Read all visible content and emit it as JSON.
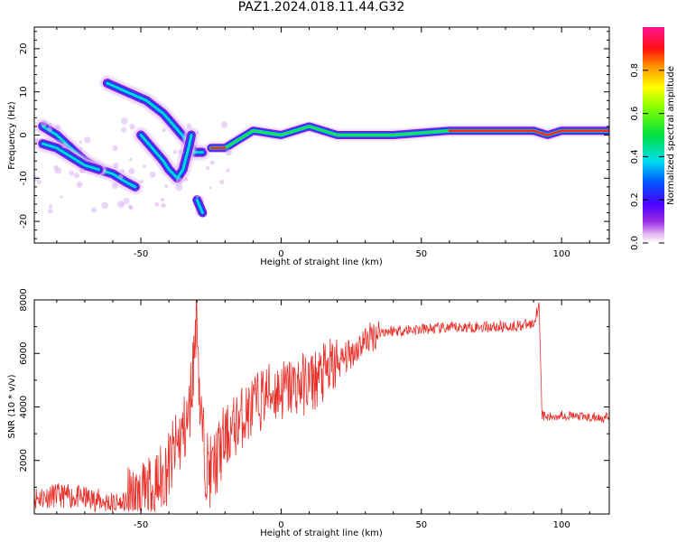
{
  "figure": {
    "title": "PAZ1.2024.018.11.44.G32"
  },
  "chart_data": [
    {
      "type": "heatmap",
      "title": "PAZ1.2024.018.11.44.G32",
      "xlabel": "Height of straight line (km)",
      "ylabel": "Frequency (Hz)",
      "xlim": [
        -88,
        117
      ],
      "ylim": [
        -25,
        25
      ],
      "xticks": [
        -50,
        0,
        50,
        100
      ],
      "yticks": [
        -20,
        -10,
        0,
        10,
        20
      ],
      "colorbar": {
        "label": "Normalized spectral amplitude",
        "ticks": [
          0.0,
          0.2,
          0.4,
          0.6,
          0.8
        ],
        "range": [
          0,
          1
        ],
        "colormap": "rainbow (magenta-purple-blue-cyan-green-yellow-red-pink)"
      },
      "traces": [
        {
          "description": "main branch",
          "points": [
            [
              -85,
              2
            ],
            [
              -80,
              0
            ],
            [
              -75,
              -3
            ],
            [
              -70,
              -6
            ],
            [
              -65,
              -8
            ],
            [
              -60,
              -9
            ],
            [
              -55,
              -11
            ],
            [
              -52,
              -12
            ]
          ]
        },
        {
          "description": "main branch lower edge",
          "points": [
            [
              -85,
              -2
            ],
            [
              -80,
              -3
            ],
            [
              -75,
              -5
            ],
            [
              -70,
              -7
            ],
            [
              -65,
              -8
            ]
          ]
        },
        {
          "description": "upper descending branch",
          "points": [
            [
              -62,
              12
            ],
            [
              -55,
              10
            ],
            [
              -48,
              8
            ],
            [
              -42,
              5
            ],
            [
              -38,
              2
            ],
            [
              -34,
              -1
            ],
            [
              -31,
              -4
            ],
            [
              -28,
              -4
            ]
          ]
        },
        {
          "description": "middle branch",
          "points": [
            [
              -50,
              0
            ],
            [
              -46,
              -3
            ],
            [
              -42,
              -6
            ],
            [
              -40,
              -8
            ],
            [
              -37,
              -10
            ],
            [
              -35,
              -8
            ],
            [
              -33,
              -3
            ],
            [
              -32,
              0
            ]
          ]
        },
        {
          "description": "isolated blob",
          "points": [
            [
              -30,
              -15
            ],
            [
              -28,
              -18
            ]
          ]
        },
        {
          "description": "flat dominant frequency",
          "points": [
            [
              -25,
              -3
            ],
            [
              -20,
              -3
            ],
            [
              -15,
              -1
            ],
            [
              -10,
              1
            ],
            [
              0,
              0
            ],
            [
              10,
              2
            ],
            [
              20,
              0
            ],
            [
              40,
              0
            ],
            [
              60,
              1
            ],
            [
              80,
              1
            ],
            [
              90,
              1
            ],
            [
              95,
              0
            ],
            [
              100,
              1
            ],
            [
              110,
              1
            ],
            [
              117,
              1
            ]
          ]
        }
      ]
    },
    {
      "type": "line",
      "title": "",
      "xlabel": "Height of straight line (km)",
      "ylabel": "SNR (10 * v/v)",
      "xlim": [
        -88,
        117
      ],
      "ylim": [
        0,
        8000
      ],
      "xticks": [
        -50,
        0,
        50,
        100
      ],
      "yticks": [
        2000,
        4000,
        6000,
        8000
      ],
      "series": [
        {
          "color": "#e8302a",
          "x": [
            -88,
            -80,
            -70,
            -60,
            -55,
            -50,
            -45,
            -40,
            -36,
            -33,
            -31,
            -30,
            -29,
            -27,
            -25,
            -20,
            -15,
            -10,
            -5,
            0,
            5,
            10,
            15,
            20,
            25,
            30,
            35,
            40,
            50,
            60,
            70,
            80,
            85,
            90,
            91,
            92,
            93,
            95,
            100,
            105,
            110,
            117
          ],
          "y": [
            600,
            700,
            600,
            400,
            350,
            500,
            900,
            1800,
            2800,
            3500,
            6000,
            8000,
            4000,
            2000,
            1500,
            2800,
            3500,
            4000,
            4500,
            4600,
            4800,
            4900,
            5200,
            5600,
            6000,
            6500,
            6800,
            6850,
            6900,
            6950,
            7000,
            7000,
            7050,
            7100,
            7500,
            7800,
            3700,
            3600,
            3700,
            3650,
            3600,
            3600
          ]
        }
      ]
    }
  ]
}
